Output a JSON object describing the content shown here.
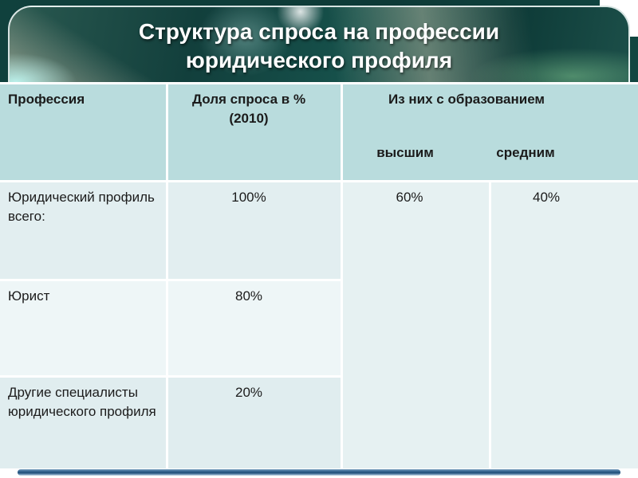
{
  "slide": {
    "title_line1": "Структура спроса на профессии",
    "title_line2": "юридического профиля"
  },
  "table": {
    "headers": {
      "profession": "Профессия",
      "share_line1": "Доля спроса в %",
      "share_line2": "(2010)",
      "education": "Из них с образованием",
      "higher": "высшим",
      "secondary": "средним"
    },
    "rows": [
      {
        "profession": "Юридический профиль всего:",
        "share": "100%"
      },
      {
        "profession": "Юрист",
        "share": "80%"
      },
      {
        "profession": "Другие специалисты юридического профиля",
        "share": "20%"
      }
    ],
    "education_values": {
      "higher": "60%",
      "secondary": "40%"
    }
  },
  "colors": {
    "banner_base": "#123f3c",
    "table_header": "#b9dcdd",
    "row_band_dark": "#e2eef0",
    "row_band_light": "#eef6f7",
    "footer_bar": "#1d4d77",
    "title_text": "#ffffff",
    "table_text": "#1b1b1b"
  }
}
